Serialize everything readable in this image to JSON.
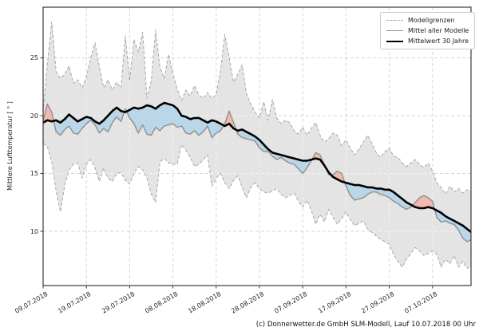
{
  "caption": "(c) Donnerwetter.de GmbH SLM-Modell, Lauf 10.07.2018 00 Uhr",
  "colors": {
    "band_fill": "#e4e4e4",
    "bound_edge": "#a6a6a6",
    "below_fill": "#b9d7e8",
    "above_fill": "#f2b9ae",
    "model_mean": "#8f8f8f",
    "mean_30y": "#000000",
    "grid": "#d6d6d6",
    "grid_over_band": "rgba(255,255,255,0.55)",
    "spine": "#3a3a3a",
    "text": "#262626"
  },
  "chart_data": {
    "type": "line",
    "title": "",
    "xlabel": "",
    "ylabel": "Mittlere Lufttemperatur [ ° ]",
    "ylim": [
      5.3,
      29.4
    ],
    "yticks": [
      25,
      20,
      15,
      10
    ],
    "grid": true,
    "x_unit": "Tage",
    "xticks": [
      {
        "day": 0,
        "label": "09.07.2018"
      },
      {
        "day": 10,
        "label": "19.07.2018"
      },
      {
        "day": 20,
        "label": "29.07.2018"
      },
      {
        "day": 30,
        "label": "08.08.2018"
      },
      {
        "day": 40,
        "label": "18.08.2018"
      },
      {
        "day": 50,
        "label": "28.08.2018"
      },
      {
        "day": 60,
        "label": "07.09.2018"
      },
      {
        "day": 70,
        "label": "17.09.2018"
      },
      {
        "day": 80,
        "label": "27.09.2018"
      },
      {
        "day": 90,
        "label": "07.10.2018"
      }
    ],
    "legend": {
      "position": "upper right",
      "entries": [
        {
          "label": "Modellgrenzen",
          "style": "dashed-gray"
        },
        {
          "label": "Mittel aller Modelle",
          "style": "solid-gray"
        },
        {
          "label": "Mittelwert 30 Jahre",
          "style": "solid-black-thick"
        }
      ]
    },
    "series": [
      {
        "name": "Modellgrenzen (obere Grenze)",
        "role": "upper_bound",
        "values": [
          20.3,
          24.5,
          28.1,
          23.8,
          23.2,
          23.6,
          24.3,
          22.8,
          23.1,
          22.4,
          23.3,
          25.0,
          26.3,
          24.2,
          22.4,
          23.1,
          22.2,
          22.9,
          22.4,
          26.9,
          23.0,
          26.6,
          25.5,
          27.2,
          21.5,
          23.0,
          27.4,
          24.2,
          23.2,
          25.3,
          23.6,
          22.3,
          21.3,
          22.2,
          21.7,
          22.6,
          21.8,
          21.5,
          22.0,
          21.5,
          21.8,
          23.9,
          27.0,
          25.0,
          22.9,
          23.6,
          24.4,
          21.9,
          21.0,
          20.3,
          19.8,
          21.2,
          19.6,
          21.4,
          19.8,
          19.3,
          19.6,
          19.4,
          18.7,
          18.4,
          19.0,
          18.3,
          18.9,
          19.4,
          18.3,
          17.7,
          18.0,
          18.5,
          18.3,
          17.4,
          17.9,
          17.2,
          16.6,
          17.1,
          17.7,
          18.3,
          17.6,
          16.8,
          16.4,
          16.9,
          17.2,
          16.5,
          16.4,
          15.9,
          15.6,
          15.9,
          16.2,
          15.8,
          15.5,
          15.9,
          15.2,
          14.2,
          13.8,
          13.2,
          13.9,
          13.4,
          13.7,
          13.3,
          13.6,
          13.4
        ]
      },
      {
        "name": "Modellgrenzen (untere Grenze)",
        "role": "lower_bound",
        "values": [
          17.6,
          17.3,
          16.0,
          13.5,
          11.7,
          14.0,
          15.3,
          15.8,
          15.9,
          14.6,
          15.8,
          16.2,
          15.5,
          14.3,
          15.5,
          14.6,
          14.3,
          15.0,
          15.1,
          14.4,
          14.1,
          15.0,
          15.6,
          15.3,
          14.6,
          13.2,
          12.5,
          16.0,
          16.3,
          15.9,
          15.8,
          15.8,
          17.5,
          17.0,
          16.4,
          15.6,
          15.8,
          16.2,
          16.6,
          13.9,
          14.6,
          15.0,
          14.2,
          13.7,
          14.4,
          14.8,
          13.8,
          12.9,
          13.8,
          14.2,
          13.7,
          13.4,
          13.3,
          13.5,
          13.7,
          13.2,
          12.9,
          13.1,
          13.3,
          12.6,
          12.1,
          12.7,
          11.8,
          10.6,
          11.5,
          10.8,
          11.9,
          11.2,
          10.6,
          11.1,
          11.7,
          11.0,
          10.5,
          10.7,
          10.9,
          10.2,
          9.9,
          9.6,
          9.3,
          9.1,
          8.9,
          8.0,
          7.4,
          6.9,
          7.6,
          8.1,
          8.6,
          8.3,
          7.9,
          8.1,
          8.3,
          8.0,
          6.9,
          7.6,
          7.2,
          7.9,
          6.9,
          7.4,
          6.8,
          7.0
        ]
      },
      {
        "name": "Mittel aller Modelle",
        "role": "model_mean",
        "values": [
          19.6,
          21.0,
          20.3,
          18.6,
          18.3,
          18.8,
          19.1,
          18.5,
          18.4,
          18.9,
          19.3,
          19.6,
          19.2,
          18.5,
          18.9,
          18.6,
          19.4,
          19.9,
          19.5,
          20.6,
          19.8,
          19.3,
          18.5,
          19.2,
          18.4,
          18.3,
          19.0,
          18.7,
          19.1,
          19.2,
          19.3,
          19.0,
          19.1,
          18.5,
          18.4,
          18.7,
          18.3,
          18.6,
          19.1,
          18.1,
          18.5,
          18.7,
          19.3,
          20.4,
          19.4,
          18.4,
          18.1,
          18.0,
          17.9,
          17.8,
          17.2,
          16.9,
          16.9,
          16.5,
          16.2,
          16.4,
          16.1,
          15.9,
          15.8,
          15.4,
          15.0,
          15.5,
          16.1,
          16.8,
          16.6,
          15.8,
          14.9,
          14.9,
          15.2,
          15.0,
          13.9,
          13.1,
          12.7,
          12.8,
          12.9,
          13.2,
          13.4,
          13.4,
          13.2,
          13.1,
          12.9,
          12.6,
          12.4,
          12.1,
          11.9,
          12.1,
          12.5,
          12.9,
          13.1,
          12.9,
          12.6,
          11.2,
          10.8,
          10.9,
          10.7,
          10.6,
          10.1,
          9.4,
          9.1,
          9.3
        ]
      },
      {
        "name": "Mittelwert 30 Jahre",
        "role": "mean_30y",
        "values": [
          19.4,
          19.6,
          19.5,
          19.6,
          19.4,
          19.7,
          20.1,
          19.8,
          19.5,
          19.7,
          19.9,
          19.8,
          19.5,
          19.3,
          19.6,
          20.0,
          20.4,
          20.7,
          20.4,
          20.3,
          20.5,
          20.7,
          20.6,
          20.7,
          20.9,
          20.8,
          20.6,
          20.9,
          21.1,
          21.0,
          20.9,
          20.6,
          20.0,
          19.9,
          19.7,
          19.8,
          19.8,
          19.6,
          19.4,
          19.6,
          19.5,
          19.3,
          19.1,
          19.3,
          18.9,
          18.7,
          18.8,
          18.6,
          18.4,
          18.2,
          17.9,
          17.5,
          17.1,
          16.8,
          16.7,
          16.6,
          16.5,
          16.4,
          16.3,
          16.2,
          16.1,
          16.1,
          16.2,
          16.3,
          16.2,
          15.7,
          15.1,
          14.7,
          14.5,
          14.3,
          14.2,
          14.1,
          14.0,
          14.0,
          13.9,
          13.8,
          13.8,
          13.7,
          13.7,
          13.6,
          13.6,
          13.4,
          13.1,
          12.8,
          12.5,
          12.3,
          12.1,
          12.0,
          12.0,
          12.1,
          12.0,
          11.8,
          11.6,
          11.3,
          11.1,
          10.9,
          10.7,
          10.5,
          10.2,
          9.9
        ]
      }
    ]
  }
}
